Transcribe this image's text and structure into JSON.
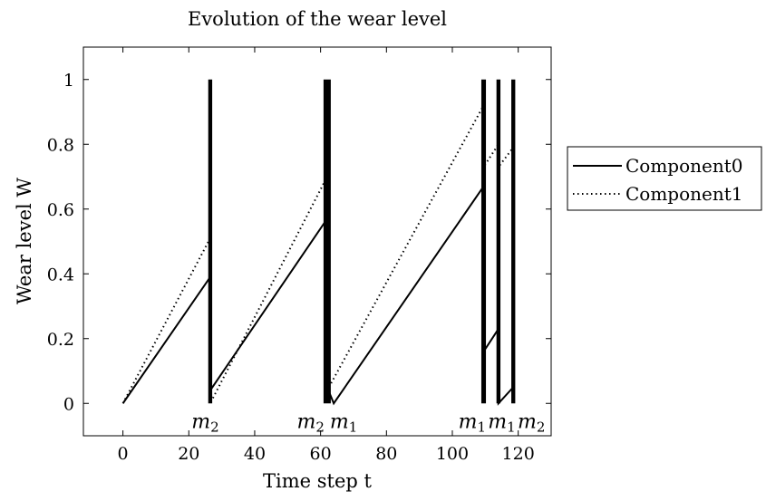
{
  "chart_data": {
    "type": "line",
    "title": "Evolution of the wear level",
    "xlabel": "Time step t",
    "ylabel": "Wear level W",
    "xlim": [
      -12,
      130
    ],
    "ylim": [
      -0.1,
      1.1
    ],
    "xticks": [
      0,
      20,
      40,
      60,
      80,
      100,
      120
    ],
    "yticks": [
      0,
      0.2,
      0.4,
      0.6,
      0.8,
      1
    ],
    "grid": false,
    "legend_position": "outside-right",
    "series": [
      {
        "name": "Component0",
        "style": "solid",
        "color": "#000000",
        "points": [
          [
            0,
            0
          ],
          [
            26.5,
            0.39
          ],
          [
            26.5,
            0.04
          ],
          [
            62,
            0.57
          ],
          [
            62,
            0.05
          ],
          [
            64,
            0.0
          ],
          [
            109.5,
            0.67
          ],
          [
            109.5,
            0.16
          ],
          [
            114,
            0.23
          ],
          [
            114,
            0.0
          ],
          [
            118.5,
            0.05
          ]
        ]
      },
      {
        "name": "Component1",
        "style": "dotted",
        "color": "#000000",
        "points": [
          [
            0,
            0
          ],
          [
            26.5,
            0.51
          ],
          [
            26.5,
            0.0
          ],
          [
            62,
            0.7
          ],
          [
            62,
            0.04
          ],
          [
            109.5,
            0.92
          ],
          [
            109.5,
            0.73
          ],
          [
            114,
            0.8
          ],
          [
            114,
            0.73
          ],
          [
            118.5,
            0.79
          ]
        ]
      }
    ],
    "maintenance_bars": [
      {
        "x": 26.5,
        "width": 1.2
      },
      {
        "x": 62.0,
        "width": 2.2
      },
      {
        "x": 109.5,
        "width": 1.4
      },
      {
        "x": 114.0,
        "width": 1.2
      },
      {
        "x": 118.5,
        "width": 1.2
      }
    ],
    "annotations": [
      {
        "x": 25,
        "base": "m",
        "sub": "2"
      },
      {
        "x": 57,
        "base": "m",
        "sub": "2"
      },
      {
        "x": 67,
        "base": "m",
        "sub": "1"
      },
      {
        "x": 106,
        "base": "m",
        "sub": "1"
      },
      {
        "x": 115,
        "base": "m",
        "sub": "1"
      },
      {
        "x": 124,
        "base": "m",
        "sub": "2"
      }
    ]
  }
}
